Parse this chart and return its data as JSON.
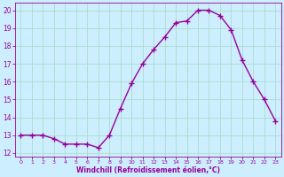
{
  "hours": [
    0,
    1,
    2,
    3,
    4,
    5,
    6,
    7,
    8,
    9,
    10,
    11,
    12,
    13,
    14,
    15,
    16,
    17,
    18,
    19,
    20,
    21,
    22,
    23
  ],
  "values": [
    13,
    13,
    13,
    12.8,
    12.5,
    12.5,
    12.5,
    12.3,
    13,
    14.5,
    15.9,
    17.0,
    17.8,
    18.5,
    19.3,
    19.4,
    20.0,
    20.0,
    19.7,
    18.9,
    17.2,
    16.0,
    15.0,
    13.8
  ],
  "line_color": "#990099",
  "marker": "+",
  "marker_size": 4,
  "marker_linewidth": 1.0,
  "bg_color": "#cceeff",
  "grid_color": "#aaddcc",
  "tick_color": "#990099",
  "label_color": "#990099",
  "xlabel": "Windchill (Refroidissement éolien,°C)",
  "ylim": [
    11.8,
    20.4
  ],
  "yticks": [
    12,
    13,
    14,
    15,
    16,
    17,
    18,
    19,
    20
  ],
  "ytick_labels": [
    "12",
    "13",
    "14",
    "15",
    "16",
    "17",
    "18",
    "19",
    "20"
  ],
  "xlim": [
    -0.5,
    23.5
  ],
  "xlabel_fontsize": 5.5,
  "ytick_fontsize": 5.5,
  "xtick_fontsize": 4.5,
  "linewidth": 1.0
}
